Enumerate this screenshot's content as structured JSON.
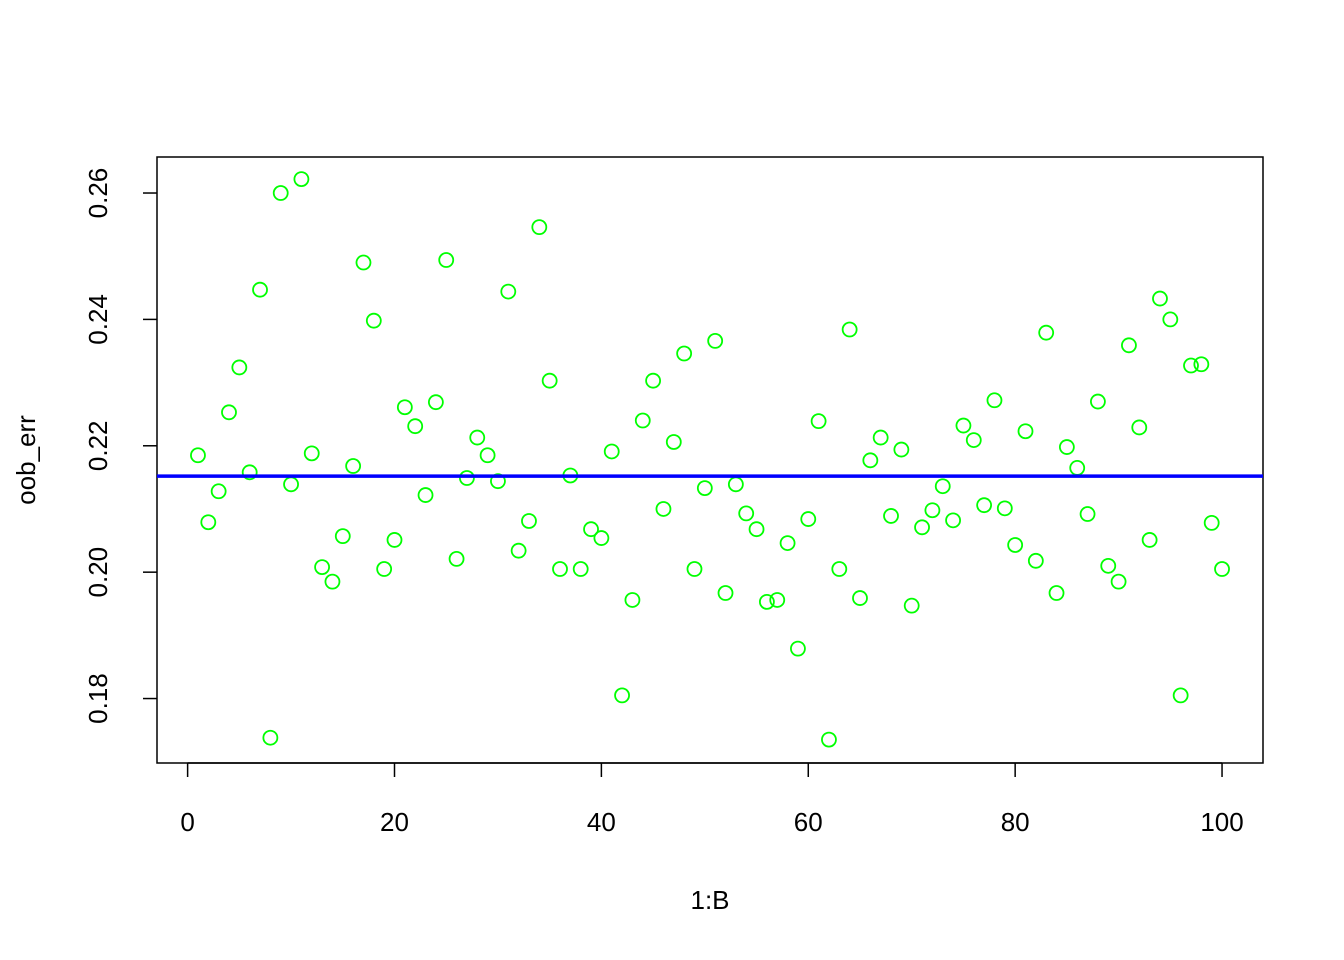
{
  "chart_data": {
    "type": "scatter",
    "xlabel": "1:B",
    "ylabel": "oob_err",
    "x": [
      1,
      2,
      3,
      4,
      5,
      6,
      7,
      8,
      9,
      10,
      11,
      12,
      13,
      14,
      15,
      16,
      17,
      18,
      19,
      20,
      21,
      22,
      23,
      24,
      25,
      26,
      27,
      28,
      29,
      30,
      31,
      32,
      33,
      34,
      35,
      36,
      37,
      38,
      39,
      40,
      41,
      42,
      43,
      44,
      45,
      46,
      47,
      48,
      49,
      50,
      51,
      52,
      53,
      54,
      55,
      56,
      57,
      58,
      59,
      60,
      61,
      62,
      63,
      64,
      65,
      66,
      67,
      68,
      69,
      70,
      71,
      72,
      73,
      74,
      75,
      76,
      77,
      78,
      79,
      80,
      81,
      82,
      83,
      84,
      85,
      86,
      87,
      88,
      89,
      90,
      91,
      92,
      93,
      94,
      95,
      96,
      97,
      98,
      99,
      100
    ],
    "values": [
      0.2185,
      0.2079,
      0.2128,
      0.2253,
      0.2324,
      0.2158,
      0.2447,
      0.1738,
      0.26,
      0.2139,
      0.2622,
      0.2188,
      0.2008,
      0.1985,
      0.2057,
      0.2168,
      0.249,
      0.2398,
      0.2005,
      0.2051,
      0.2261,
      0.2231,
      0.2122,
      0.2269,
      0.2494,
      0.2021,
      0.2149,
      0.2213,
      0.2185,
      0.2144,
      0.2444,
      0.2034,
      0.2081,
      0.2546,
      0.2303,
      0.2005,
      0.2153,
      0.2005,
      0.2068,
      0.2054,
      0.2191,
      0.1805,
      0.1956,
      0.224,
      0.2303,
      0.21,
      0.2206,
      0.2346,
      0.2005,
      0.2133,
      0.2366,
      0.1967,
      0.2139,
      0.2093,
      0.2068,
      0.1953,
      0.1956,
      0.2046,
      0.1879,
      0.2084,
      0.2239,
      0.1735,
      0.2005,
      0.2384,
      0.1959,
      0.2177,
      0.2213,
      0.2089,
      0.2194,
      0.1947,
      0.2071,
      0.2098,
      0.2136,
      0.2082,
      0.2232,
      0.2209,
      0.2106,
      0.2272,
      0.2101,
      0.2043,
      0.2223,
      0.2018,
      0.2379,
      0.1967,
      0.2198,
      0.2165,
      0.2092,
      0.227,
      0.201,
      0.1985,
      0.2359,
      0.2229,
      0.2051,
      0.2433,
      0.24,
      0.1805,
      0.2327,
      0.2329,
      0.2078,
      0.2005
    ],
    "color": "#00ff00",
    "hline": {
      "value": 0.2152,
      "color": "#0000ff"
    },
    "xlim": [
      -2.96,
      103.96
    ],
    "xticks": [
      0,
      20,
      40,
      60,
      80,
      100
    ],
    "ylim": [
      0.1698,
      0.2657
    ],
    "yticks": [
      0.18,
      {
        "value": 0.2,
        "label": "0.20"
      },
      0.22,
      0.24,
      0.26
    ],
    "grid": false
  }
}
